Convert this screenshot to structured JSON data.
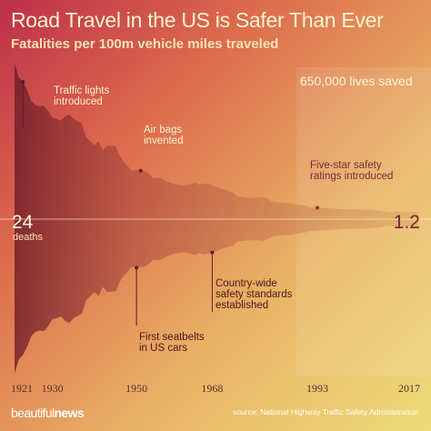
{
  "header": {
    "title": "Road Travel in the US is Safer Than Ever",
    "subtitle": "Fatalities per 100m vehicle miles traveled"
  },
  "footer": {
    "brand_light": "beautiful",
    "brand_bold": "news",
    "source": "source: National Highway Traffic Safety Administration"
  },
  "chart_data": {
    "type": "area",
    "title": "Road Travel in the US is Safer Than Ever",
    "subtitle": "Fatalities per 100m vehicle miles traveled",
    "xlim": [
      1921,
      2017
    ],
    "ylim": [
      0,
      24
    ],
    "x_ticks": [
      "1921",
      "1930",
      "1950",
      "1968",
      "1993",
      "2017"
    ],
    "start_value_label": "24",
    "start_unit_label": "deaths",
    "end_value_label": "1.2",
    "highlight_region": {
      "from": 1988,
      "to": 2017,
      "label": "650,000 lives saved"
    },
    "series": [
      {
        "x": [
          1921,
          1922,
          1923,
          1924,
          1925,
          1926,
          1927,
          1928,
          1929,
          1930,
          1931,
          1932,
          1933,
          1934,
          1935,
          1936,
          1937,
          1938,
          1939,
          1940,
          1941,
          1942,
          1943,
          1944,
          1945,
          1946,
          1947,
          1948,
          1949,
          1950,
          1951,
          1952,
          1953,
          1954,
          1955,
          1956,
          1957,
          1958,
          1959,
          1960,
          1961,
          1962,
          1963,
          1964,
          1965,
          1966,
          1967,
          1968,
          1969,
          1970,
          1971,
          1972,
          1973,
          1974,
          1975,
          1976,
          1977,
          1978,
          1979,
          1980,
          1981,
          1982,
          1983,
          1984,
          1985,
          1986,
          1987,
          1988,
          1989,
          1990,
          1991,
          1992,
          1993,
          1994,
          1995,
          1996,
          1997,
          1998,
          1999,
          2000,
          2001,
          2002,
          2003,
          2004,
          2005,
          2006,
          2007,
          2008,
          2009,
          2010,
          2011,
          2012,
          2013,
          2014,
          2015,
          2016,
          2017
        ],
        "values": [
          24.1,
          21.9,
          21.2,
          19.9,
          18.2,
          17.6,
          17.4,
          17.5,
          16.7,
          15.6,
          15.5,
          15.2,
          15.9,
          16.2,
          15.5,
          15.1,
          14.8,
          12.7,
          12.0,
          11.4,
          12.0,
          10.6,
          11.4,
          11.3,
          11.3,
          9.8,
          8.8,
          8.1,
          7.4,
          7.6,
          7.5,
          7.4,
          7.0,
          6.3,
          6.4,
          6.3,
          5.9,
          5.6,
          5.4,
          5.3,
          5.2,
          5.3,
          5.4,
          5.6,
          5.3,
          5.5,
          5.4,
          5.2,
          5.0,
          4.7,
          4.5,
          4.3,
          4.1,
          3.5,
          3.4,
          3.3,
          3.3,
          3.3,
          3.3,
          3.4,
          3.2,
          2.8,
          2.6,
          2.6,
          2.5,
          2.5,
          2.4,
          2.3,
          2.2,
          2.1,
          1.9,
          1.8,
          1.75,
          1.73,
          1.73,
          1.69,
          1.64,
          1.58,
          1.55,
          1.53,
          1.51,
          1.51,
          1.48,
          1.44,
          1.46,
          1.42,
          1.36,
          1.26,
          1.15,
          1.11,
          1.1,
          1.14,
          1.1,
          1.08,
          1.15,
          1.18,
          1.16
        ]
      }
    ],
    "annotations": [
      {
        "id": "traffic-lights",
        "year": 1923,
        "lines": [
          "Traffic lights",
          "introduced"
        ]
      },
      {
        "id": "air-bags",
        "year": 1951,
        "lines": [
          "Air bags",
          "invented"
        ]
      },
      {
        "id": "five-star",
        "year": 1993,
        "lines": [
          "Five-star safety",
          "ratings introduced"
        ]
      },
      {
        "id": "seatbelts",
        "year": 1950,
        "lines": [
          "First seatbelts",
          "in US cars"
        ]
      },
      {
        "id": "safety-standards",
        "year": 1968,
        "lines": [
          "Country-wide",
          "safety standards",
          "established"
        ]
      }
    ]
  }
}
